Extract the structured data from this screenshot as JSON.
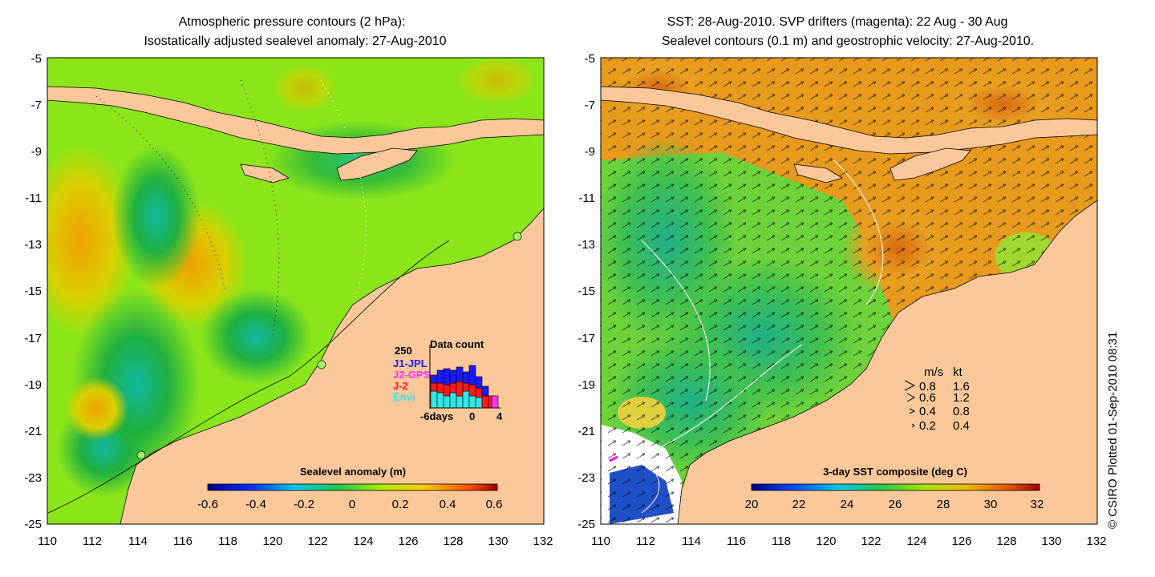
{
  "left_map": {
    "title_line1": "Atmospheric pressure contours (2 hPa):",
    "title_line2": "Isostatically adjusted sealevel anomaly: 27-Aug-2010",
    "y_ticks": [
      "-5",
      "-7",
      "-9",
      "-11",
      "-13",
      "-15",
      "-17",
      "-19",
      "-21",
      "-23",
      "-25"
    ],
    "x_ticks": [
      "110",
      "112",
      "114",
      "116",
      "118",
      "120",
      "122",
      "124",
      "126",
      "128",
      "130",
      "132"
    ],
    "colorbar": {
      "label": "Sealevel anomaly (m)",
      "ticks": [
        "-0.6",
        "-0.4",
        "-0.2",
        "0",
        "0.2",
        "0.4",
        "0.6"
      ]
    },
    "data_count": {
      "title": "Data count",
      "max_label": "250",
      "legend": [
        {
          "name": "J1-JPL",
          "color": "#1a1aff"
        },
        {
          "name": "J2-GPS",
          "color": "#ff33ff"
        },
        {
          "name": "J-2",
          "color": "#ff1a1a"
        },
        {
          "name": "Envi",
          "color": "#33e6e6"
        }
      ],
      "x_ticks": [
        "-6days",
        "0",
        "4"
      ]
    }
  },
  "right_map": {
    "title_line1": "SST: 28-Aug-2010. SVP drifters (magenta): 22 Aug - 30 Aug",
    "title_line2": "Sealevel contours (0.1 m) and geostrophic velocity: 27-Aug-2010.",
    "y_ticks": [
      "-5",
      "-7",
      "-9",
      "-11",
      "-13",
      "-15",
      "-17",
      "-19",
      "-21",
      "-23",
      "-25"
    ],
    "x_ticks": [
      "110",
      "112",
      "114",
      "116",
      "118",
      "120",
      "122",
      "124",
      "126",
      "128",
      "130",
      "132"
    ],
    "colorbar": {
      "label": "3-day SST composite (deg C)",
      "ticks": [
        "20",
        "22",
        "24",
        "26",
        "28",
        "30",
        "32"
      ]
    },
    "velocity_legend": {
      "header_ms": "m/s",
      "header_kt": "kt",
      "rows": [
        {
          "ms": "0.8",
          "kt": "1.6"
        },
        {
          "ms": "0.6",
          "kt": "1.2"
        },
        {
          "ms": "0.4",
          "kt": "0.8"
        },
        {
          "ms": "0.2",
          "kt": "0.4"
        }
      ]
    }
  },
  "credit": "© CSIRO Plotted 01-Sep-2010 08:31",
  "colors": {
    "land": "#fcc89a",
    "ocean_left": "#8be619",
    "ocean_right_warm": "#e89a1c",
    "ocean_right_cool": "#38c468"
  }
}
